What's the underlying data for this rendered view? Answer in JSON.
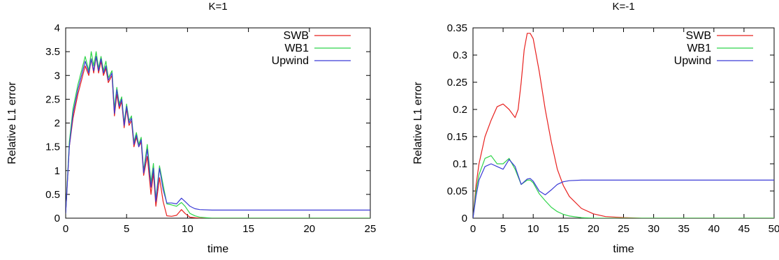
{
  "chart_data": [
    {
      "type": "line",
      "title": "K=1",
      "xlabel": "time",
      "ylabel": "Relative L1 error",
      "xlim": [
        0,
        25
      ],
      "ylim": [
        0,
        4
      ],
      "xticks": [
        "0",
        "5",
        "10",
        "15",
        "20",
        "25"
      ],
      "yticks": [
        "0",
        "0.5",
        "1",
        "1.5",
        "2",
        "2.5",
        "3",
        "3.5",
        "4"
      ],
      "legend_position": "top-right",
      "grid": false,
      "series": [
        {
          "name": "SWB",
          "color": "#e8201e",
          "x": [
            0,
            0.3,
            0.6,
            1.0,
            1.3,
            1.6,
            1.9,
            2.1,
            2.3,
            2.5,
            2.7,
            2.9,
            3.1,
            3.3,
            3.5,
            3.8,
            4.0,
            4.2,
            4.4,
            4.6,
            4.8,
            5.0,
            5.2,
            5.4,
            5.6,
            5.8,
            6.0,
            6.2,
            6.4,
            6.7,
            7.0,
            7.2,
            7.4,
            7.7,
            8.0,
            8.3,
            8.7,
            9.1,
            9.5,
            9.8,
            10.2,
            10.6,
            11.0,
            12.0,
            25.0
          ],
          "y": [
            0.1,
            1.5,
            2.1,
            2.6,
            2.9,
            3.2,
            3.0,
            3.35,
            3.05,
            3.4,
            3.05,
            3.3,
            3.0,
            3.15,
            2.85,
            3.0,
            2.15,
            2.6,
            2.3,
            2.45,
            1.9,
            2.3,
            1.95,
            2.05,
            1.5,
            1.7,
            1.5,
            1.6,
            0.9,
            1.3,
            0.5,
            0.95,
            0.25,
            0.85,
            0.35,
            0.05,
            0.04,
            0.06,
            0.18,
            0.1,
            0.02,
            0.01,
            0.0,
            0.0,
            0.0
          ]
        },
        {
          "name": "WB1",
          "color": "#2fd44a",
          "x": [
            0,
            0.3,
            0.6,
            1.0,
            1.3,
            1.6,
            1.9,
            2.1,
            2.3,
            2.5,
            2.7,
            2.9,
            3.1,
            3.3,
            3.5,
            3.8,
            4.0,
            4.2,
            4.4,
            4.6,
            4.8,
            5.0,
            5.2,
            5.4,
            5.6,
            5.8,
            6.0,
            6.2,
            6.4,
            6.7,
            7.0,
            7.2,
            7.4,
            7.7,
            8.0,
            8.3,
            8.7,
            9.1,
            9.5,
            9.8,
            10.2,
            10.6,
            11.0,
            12.0,
            25.0
          ],
          "y": [
            0.1,
            1.6,
            2.3,
            2.8,
            3.1,
            3.4,
            3.1,
            3.5,
            3.2,
            3.5,
            3.15,
            3.4,
            3.1,
            3.3,
            2.95,
            3.1,
            2.3,
            2.75,
            2.4,
            2.55,
            2.0,
            2.4,
            2.05,
            2.15,
            1.6,
            1.8,
            1.55,
            1.7,
            1.0,
            1.55,
            0.75,
            1.15,
            0.4,
            1.1,
            0.7,
            0.3,
            0.28,
            0.25,
            0.33,
            0.25,
            0.1,
            0.05,
            0.02,
            0.0,
            0.0
          ]
        },
        {
          "name": "Upwind",
          "color": "#3a3ad6",
          "x": [
            0,
            0.3,
            0.6,
            1.0,
            1.3,
            1.6,
            1.9,
            2.1,
            2.3,
            2.5,
            2.7,
            2.9,
            3.1,
            3.3,
            3.5,
            3.8,
            4.0,
            4.2,
            4.4,
            4.6,
            4.8,
            5.0,
            5.2,
            5.4,
            5.6,
            5.8,
            6.0,
            6.2,
            6.4,
            6.7,
            7.0,
            7.2,
            7.4,
            7.7,
            8.0,
            8.3,
            8.7,
            9.1,
            9.5,
            9.8,
            10.2,
            10.6,
            11.0,
            12.0,
            25.0
          ],
          "y": [
            0.1,
            1.5,
            2.2,
            2.7,
            3.0,
            3.3,
            3.05,
            3.35,
            3.1,
            3.4,
            3.1,
            3.35,
            3.05,
            3.2,
            2.9,
            3.05,
            2.2,
            2.7,
            2.35,
            2.5,
            1.95,
            2.35,
            2.0,
            2.1,
            1.55,
            1.75,
            1.5,
            1.65,
            0.95,
            1.45,
            0.65,
            1.05,
            0.35,
            1.05,
            0.6,
            0.32,
            0.32,
            0.3,
            0.42,
            0.35,
            0.25,
            0.2,
            0.18,
            0.17,
            0.17
          ]
        }
      ]
    },
    {
      "type": "line",
      "title": "K=-1",
      "xlabel": "time",
      "ylabel": "Relative L1 error",
      "xlim": [
        0,
        50
      ],
      "ylim": [
        0,
        0.35
      ],
      "xticks": [
        "0",
        "5",
        "10",
        "15",
        "20",
        "25",
        "30",
        "35",
        "40",
        "45",
        "50"
      ],
      "yticks": [
        "0",
        "0.05",
        "0.1",
        "0.15",
        "0.2",
        "0.25",
        "0.3",
        "0.35"
      ],
      "legend_position": "top-right",
      "grid": false,
      "series": [
        {
          "name": "SWB",
          "color": "#e8201e",
          "x": [
            0,
            0.5,
            1,
            2,
            3,
            4,
            5,
            6,
            7,
            7.5,
            8,
            8.5,
            9,
            9.5,
            10,
            11,
            12,
            13,
            14,
            15,
            16,
            18,
            20,
            22,
            25,
            28,
            30,
            50
          ],
          "y": [
            0,
            0.06,
            0.1,
            0.15,
            0.18,
            0.205,
            0.21,
            0.2,
            0.185,
            0.2,
            0.25,
            0.31,
            0.34,
            0.34,
            0.33,
            0.27,
            0.2,
            0.14,
            0.09,
            0.06,
            0.04,
            0.018,
            0.008,
            0.003,
            0.001,
            0.0,
            0.0,
            0.0
          ]
        },
        {
          "name": "WB1",
          "color": "#2fd44a",
          "x": [
            0,
            0.5,
            1,
            2,
            3,
            4,
            5,
            6,
            7,
            8,
            9,
            9.5,
            10,
            11,
            12,
            13,
            14,
            15,
            16,
            18,
            20,
            50
          ],
          "y": [
            0,
            0.05,
            0.08,
            0.11,
            0.115,
            0.1,
            0.1,
            0.11,
            0.09,
            0.062,
            0.07,
            0.07,
            0.065,
            0.045,
            0.032,
            0.02,
            0.012,
            0.007,
            0.004,
            0.001,
            0.0,
            0.0
          ]
        },
        {
          "name": "Upwind",
          "color": "#3a3ad6",
          "x": [
            0,
            0.5,
            1,
            2,
            3,
            4,
            5,
            6,
            7,
            8,
            9,
            9.5,
            10,
            11,
            12,
            13,
            14,
            15,
            16,
            18,
            20,
            25,
            50
          ],
          "y": [
            0,
            0.04,
            0.07,
            0.095,
            0.1,
            0.095,
            0.09,
            0.108,
            0.095,
            0.062,
            0.072,
            0.073,
            0.068,
            0.05,
            0.043,
            0.052,
            0.062,
            0.067,
            0.069,
            0.07,
            0.07,
            0.07,
            0.07
          ]
        }
      ]
    }
  ]
}
